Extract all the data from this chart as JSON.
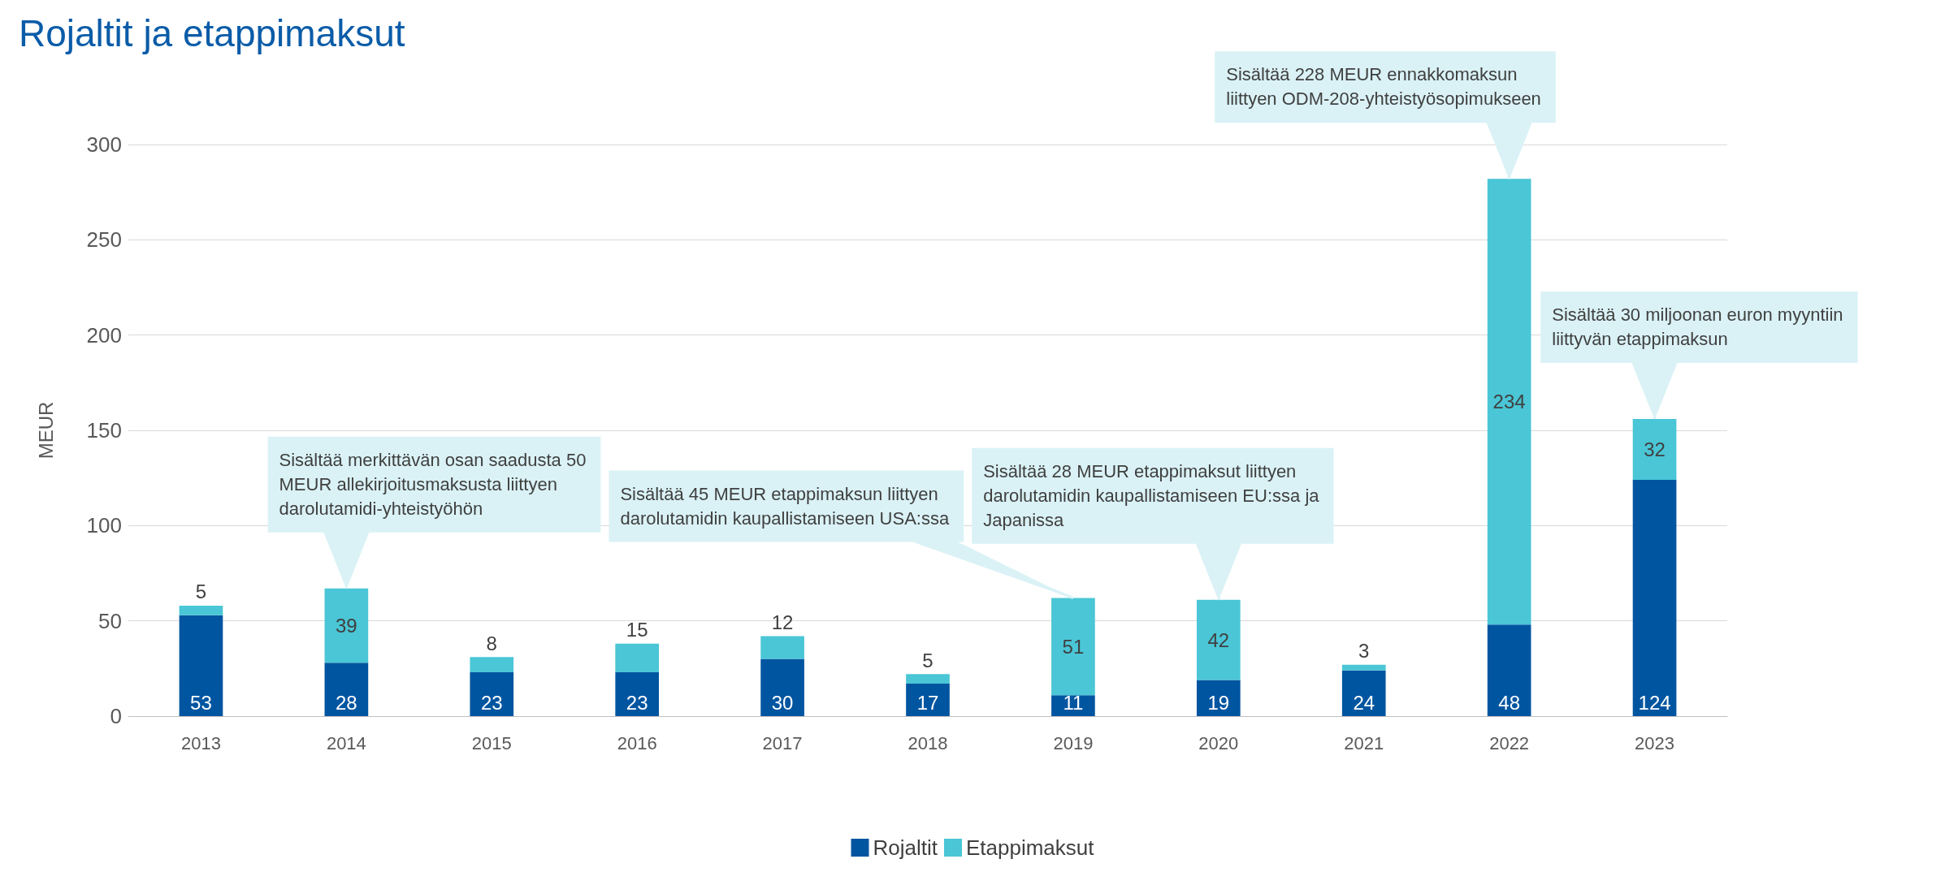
{
  "chart_data": {
    "type": "bar",
    "title": "Rojaltit ja etappimaksut",
    "ylabel": "MEUR",
    "categories": [
      "2013",
      "2014",
      "2015",
      "2016",
      "2017",
      "2018",
      "2019",
      "2020",
      "2021",
      "2022",
      "2023"
    ],
    "series": [
      {
        "name": "Rojaltit",
        "color": "#0055a0",
        "values": [
          53,
          28,
          23,
          23,
          30,
          17,
          11,
          19,
          24,
          48,
          124
        ]
      },
      {
        "name": "Etappimaksut",
        "color": "#4ac6d6",
        "values": [
          5,
          39,
          8,
          15,
          12,
          5,
          51,
          42,
          3,
          234,
          32
        ]
      }
    ],
    "stacked": true,
    "data_labels": true,
    "ylim": [
      0,
      300
    ],
    "yticks": [
      0,
      50,
      100,
      150,
      200,
      250,
      300
    ],
    "grid": "y",
    "legend": "bottom",
    "annotations": [
      {
        "text": "Sisältää merkittävän osan saadusta 50 MEUR allekirjoitusmaksusta liittyen darolutamidi-yhteistyöhön",
        "x": "2014",
        "y": 67
      },
      {
        "text": "Sisältää 45 MEUR etappimaksun liittyen darolutamidin kaupallistamiseen USA:ssa",
        "x": "2019",
        "y": 62
      },
      {
        "text": "Sisältää 28 MEUR etappimaksut liittyen darolutamidin kaupallistamiseen EU:ssa ja Japanissa",
        "x": "2020",
        "y": 61
      },
      {
        "text": "Sisältää 228 MEUR ennakkomaksun liittyen ODM-208-yhteistyösopimukseen",
        "x": "2022",
        "y": 282
      },
      {
        "text": "Sisältää 30 miljoonan euron myyntiin liittyvän etappimaksun",
        "x": "2023",
        "y": 156
      }
    ]
  }
}
